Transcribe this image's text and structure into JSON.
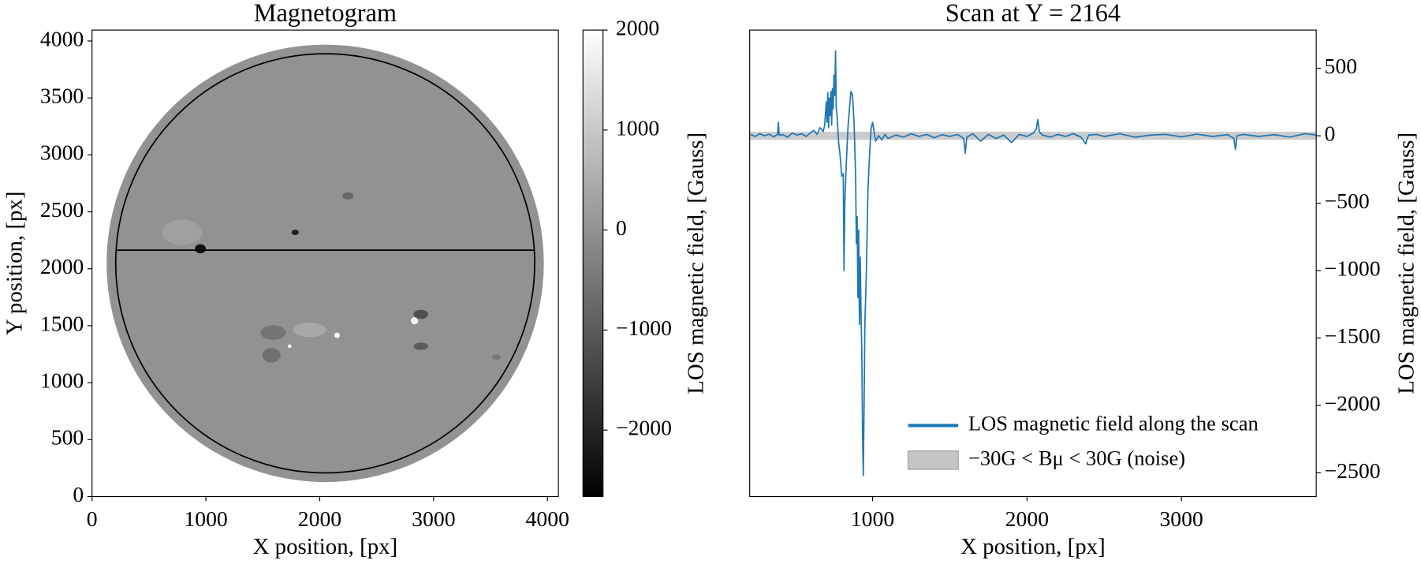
{
  "chart_data": [
    {
      "type": "image",
      "title": "Magnetogram",
      "x_label": "X position, [px]",
      "y_label": "Y position, [px]",
      "xlim": [
        0,
        4096
      ],
      "ylim": [
        0,
        4096
      ],
      "xticks": [
        0,
        1000,
        2000,
        3000,
        4000
      ],
      "yticks": [
        0,
        500,
        1000,
        1500,
        2000,
        2500,
        3000,
        3500,
        4000
      ],
      "disk": {
        "center": [
          2048,
          2048
        ],
        "radius": 1920
      },
      "limb_radius": 1840,
      "scan_y": 2164,
      "colorbar": {
        "label": "LOS magnetic field, [Gauss]",
        "lim": [
          -2665,
          2000
        ],
        "ticks": [
          {
            "value": -2000,
            "label": "−2000"
          },
          {
            "value": -1000,
            "label": "−1000"
          },
          0,
          1000,
          2000
        ]
      }
    },
    {
      "type": "line",
      "title": "Scan at Y = 2164",
      "x_label": "X position, [px]",
      "y_label": "LOS magnetic field, [Gauss]",
      "y_axis_side": "right",
      "legend": "lower right",
      "xlim": [
        204,
        3873
      ],
      "ylim": [
        -2676,
        784
      ],
      "xticks": [
        1000,
        2000,
        3000
      ],
      "yticks": [
        {
          "value": -2500,
          "label": "−2500"
        },
        {
          "value": -2000,
          "label": "−2000"
        },
        {
          "value": -1500,
          "label": "−1500"
        },
        {
          "value": -1000,
          "label": "−1000"
        },
        {
          "value": -500,
          "label": "−500"
        },
        0,
        500
      ],
      "x": [
        210,
        240,
        270,
        300,
        330,
        360,
        385,
        390,
        395,
        420,
        450,
        480,
        510,
        540,
        570,
        600,
        620,
        640,
        660,
        680,
        690,
        700,
        705,
        710,
        715,
        720,
        725,
        730,
        735,
        740,
        745,
        750,
        755,
        760,
        765,
        770,
        775,
        780,
        790,
        800,
        810,
        815,
        820,
        830,
        840,
        850,
        860,
        870,
        880,
        890,
        895,
        900,
        905,
        910,
        915,
        920,
        925,
        930,
        935,
        940,
        945,
        950,
        955,
        960,
        965,
        970,
        980,
        990,
        1000,
        1020,
        1040,
        1060,
        1080,
        1100,
        1150,
        1200,
        1250,
        1300,
        1350,
        1400,
        1450,
        1500,
        1550,
        1590,
        1600,
        1610,
        1650,
        1700,
        1750,
        1800,
        1850,
        1900,
        1950,
        2000,
        2040,
        2060,
        2070,
        2080,
        2100,
        2150,
        2200,
        2250,
        2300,
        2350,
        2380,
        2390,
        2400,
        2450,
        2500,
        2600,
        2700,
        2800,
        2900,
        3000,
        3100,
        3200,
        3300,
        3340,
        3350,
        3360,
        3400,
        3500,
        3600,
        3700,
        3800,
        3880
      ],
      "series": [
        {
          "name": "LOS magnetic field along the scan",
          "color": "#1f77b4",
          "values": [
            10,
            -5,
            15,
            0,
            12,
            -8,
            10,
            100,
            5,
            8,
            -10,
            20,
            5,
            15,
            -5,
            25,
            40,
            10,
            60,
            30,
            80,
            250,
            100,
            320,
            60,
            280,
            150,
            330,
            80,
            350,
            200,
            450,
            300,
            630,
            200,
            150,
            50,
            -50,
            -150,
            -300,
            -280,
            -1000,
            -500,
            -200,
            50,
            200,
            330,
            300,
            100,
            -300,
            -800,
            -600,
            -1200,
            -700,
            -1400,
            -900,
            -1300,
            -1600,
            -2200,
            -2520,
            -2000,
            -1400,
            -1200,
            -1000,
            -700,
            -400,
            -150,
            50,
            100,
            -40,
            0,
            -30,
            10,
            -20,
            5,
            -10,
            15,
            -5,
            10,
            -15,
            8,
            -5,
            10,
            -20,
            -130,
            -10,
            15,
            -40,
            10,
            -20,
            5,
            -50,
            10,
            -5,
            20,
            50,
            120,
            30,
            5,
            -10,
            10,
            -5,
            15,
            -10,
            -60,
            -20,
            5,
            10,
            -5,
            15,
            -10,
            5,
            10,
            -8,
            12,
            -5,
            8,
            -20,
            -100,
            0,
            10,
            -5,
            8,
            -10,
            15,
            5
          ]
        }
      ],
      "band": {
        "name": "−30G < Bμ < 30G (noise)",
        "range": [
          -30,
          30
        ],
        "color": "#bfbfbf"
      }
    }
  ]
}
